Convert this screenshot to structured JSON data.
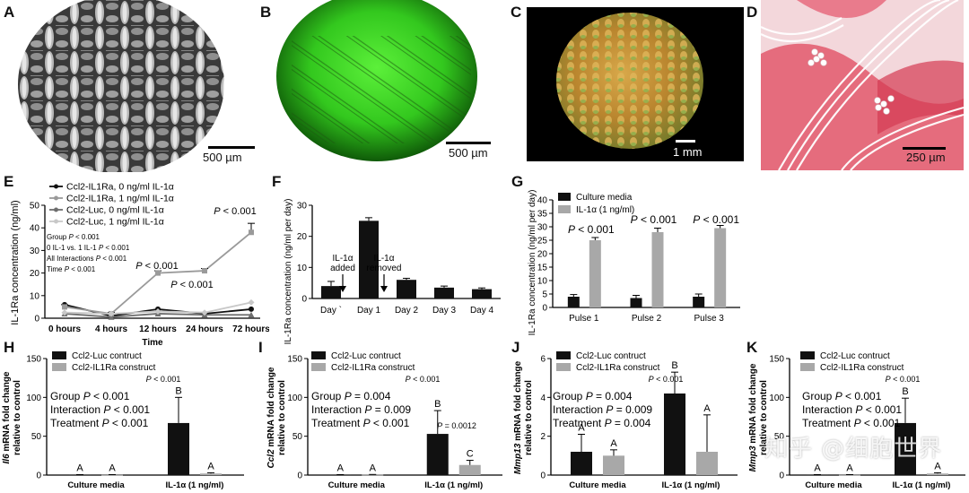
{
  "panels": {
    "A": {
      "letter": "A",
      "scale": "500 µm"
    },
    "B": {
      "letter": "B",
      "scale": "500 µm"
    },
    "C": {
      "letter": "C",
      "scale": "1 mm"
    },
    "D": {
      "letter": "D",
      "scale": "250 µm"
    },
    "E": {
      "letter": "E"
    },
    "F": {
      "letter": "F"
    },
    "G": {
      "letter": "G"
    },
    "H": {
      "letter": "H"
    },
    "I": {
      "letter": "I"
    },
    "J": {
      "letter": "J"
    },
    "K": {
      "letter": "K"
    }
  },
  "watermark": "知乎 @细胞世界",
  "chart_data": [
    {
      "panel": "E",
      "type": "line",
      "ylabel": "IL-1Ra concentration (ng/ml)",
      "xlabel": "Time",
      "categories": [
        "0 hours",
        "4 hours",
        "12 hours",
        "24 hours",
        "72 hours"
      ],
      "ylim": [
        0,
        50
      ],
      "yticks": [
        0,
        10,
        20,
        30,
        40,
        50
      ],
      "series": [
        {
          "name": "Ccl2-IL1Ra, 0 ng/ml IL-1α",
          "color": "#111111",
          "marker": "circle",
          "values": [
            6,
            1,
            4,
            2,
            4
          ]
        },
        {
          "name": "Ccl2-IL1Ra, 1 ng/ml IL-1α",
          "color": "#9a9a9a",
          "marker": "square",
          "values": [
            5,
            2,
            20,
            21,
            38
          ],
          "err": [
            1,
            0.5,
            1,
            1,
            4
          ]
        },
        {
          "name": "Ccl2-Luc, 0 ng/ml IL-1α",
          "color": "#6e6e6e",
          "marker": "triangle",
          "values": [
            2,
            0.5,
            2,
            1.5,
            1.5
          ]
        },
        {
          "name": "Ccl2-Luc, 1 ng/ml IL-1α",
          "color": "#c8c8c8",
          "marker": "diamond",
          "values": [
            2.5,
            2,
            3,
            2.5,
            7
          ]
        }
      ],
      "stats": [
        "Group P < 0.001",
        "0 IL-1 vs. 1 IL-1 P < 0.001",
        "All Interactions P < 0.001",
        "Time P < 0.001"
      ],
      "annotations": [
        "P < 0.001",
        "P < 0.001",
        "P < 0.001"
      ]
    },
    {
      "panel": "F",
      "type": "bar",
      "ylabel": "IL-1Ra concentration (ng/ml per day)",
      "categories": [
        "Day `",
        "Day 1",
        "Day 2",
        "Day 3",
        "Day 4"
      ],
      "values": [
        4,
        25,
        6,
        3.5,
        3
      ],
      "err": [
        1.5,
        1,
        0.5,
        0.5,
        0.4
      ],
      "ylim": [
        0,
        30
      ],
      "yticks": [
        0,
        10,
        20,
        30
      ],
      "annotations": [
        "IL-1α added",
        "IL-1α removed"
      ]
    },
    {
      "panel": "G",
      "type": "bar",
      "ylabel": "IL-1Ra concentration (ng/ml per day)",
      "categories": [
        "Pulse 1",
        "Pulse 2",
        "Pulse 3"
      ],
      "series": [
        {
          "name": "Culture media",
          "color": "#111111",
          "values": [
            4,
            3.5,
            4
          ],
          "err": [
            0.8,
            1,
            1
          ]
        },
        {
          "name": "IL-1α (1 ng/ml)",
          "color": "#a8a8a8",
          "values": [
            25,
            28,
            29.5
          ],
          "err": [
            1,
            1.5,
            1
          ]
        }
      ],
      "ylim": [
        0,
        40
      ],
      "yticks": [
        0,
        5,
        10,
        15,
        20,
        25,
        30,
        35,
        40
      ],
      "annotations": [
        "P < 0.001",
        "P < 0.001",
        "P < 0.001"
      ]
    },
    {
      "panel": "H",
      "type": "bar",
      "ylabel_gene": "Il6",
      "ylabel_rest": " mRNA fold change",
      "ylabel2": "relative to control",
      "categories": [
        "Culture media",
        "IL-1α (1 ng/ml)"
      ],
      "series": [
        {
          "name": "Ccl2-Luc contruct",
          "color": "#111111",
          "values": [
            0.3,
            67
          ],
          "err": [
            0.3,
            33
          ],
          "letters": [
            "A",
            "B"
          ]
        },
        {
          "name": "Ccl2-IL1Ra construct",
          "color": "#a8a8a8",
          "values": [
            0.3,
            2
          ],
          "err": [
            0.3,
            1
          ],
          "letters": [
            "A",
            "A"
          ]
        }
      ],
      "ylim": [
        0,
        150
      ],
      "yticks": [
        0,
        50,
        100,
        150
      ],
      "stats": [
        "Group P < 0.001",
        "Interaction P < 0.001",
        "Treatment P < 0.001"
      ],
      "annotations": [
        "P < 0.001"
      ]
    },
    {
      "panel": "I",
      "type": "bar",
      "ylabel_gene": "Ccl2",
      "ylabel_rest": " mRNA fold change",
      "ylabel2": "relative to control",
      "categories": [
        "Culture media",
        "IL-1α (1 ng/ml)"
      ],
      "series": [
        {
          "name": "Ccl2-Luc contruct",
          "color": "#111111",
          "values": [
            0.3,
            53
          ],
          "err": [
            0.3,
            30
          ],
          "letters": [
            "A",
            "B"
          ]
        },
        {
          "name": "Ccl2-IL1Ra construct",
          "color": "#a8a8a8",
          "values": [
            0.5,
            13
          ],
          "err": [
            0.3,
            6
          ],
          "letters": [
            "A",
            "C"
          ]
        }
      ],
      "ylim": [
        0,
        150
      ],
      "yticks": [
        0,
        50,
        100,
        150
      ],
      "stats": [
        "Group P = 0.004",
        "Interaction P = 0.009",
        "Treatment P < 0.001"
      ],
      "annotations": [
        "P < 0.001",
        "P = 0.0012"
      ]
    },
    {
      "panel": "J",
      "type": "bar",
      "ylabel_gene": "Mmp13",
      "ylabel_rest": " mRNA fold change",
      "ylabel2": "relative to control",
      "categories": [
        "Culture media",
        "IL-1α (1 ng/ml)"
      ],
      "series": [
        {
          "name": "Ccl2-Luc contruct",
          "color": "#111111",
          "values": [
            1.2,
            4.2
          ],
          "err": [
            0.9,
            1.1
          ],
          "letters": [
            "A",
            "B"
          ]
        },
        {
          "name": "Ccl2-IL1Ra construct",
          "color": "#a8a8a8",
          "values": [
            1,
            1.2
          ],
          "err": [
            0.3,
            1.9
          ],
          "letters": [
            "A",
            "A"
          ]
        }
      ],
      "ylim": [
        0,
        6
      ],
      "yticks": [
        0,
        2,
        4,
        6
      ],
      "stats": [
        "Group P = 0.004",
        "Interaction P = 0.009",
        "Treatment P = 0.004"
      ],
      "annotations": [
        "P < 0.001"
      ]
    },
    {
      "panel": "K",
      "type": "bar",
      "ylabel_gene": "Mmp3",
      "ylabel_rest": " mRNA fold change",
      "ylabel2": "relative to control",
      "categories": [
        "Culture media",
        "IL-1α (1 ng/ml)"
      ],
      "series": [
        {
          "name": "Ccl2-Luc contruct",
          "color": "#111111",
          "values": [
            0.3,
            67
          ],
          "err": [
            0.3,
            32
          ],
          "letters": [
            "A",
            "B"
          ]
        },
        {
          "name": "Ccl2-IL1Ra construct",
          "color": "#a8a8a8",
          "values": [
            0.3,
            2
          ],
          "err": [
            0.3,
            1
          ],
          "letters": [
            "A",
            "A"
          ]
        }
      ],
      "ylim": [
        0,
        150
      ],
      "yticks": [
        0,
        50,
        100,
        150
      ],
      "stats": [
        "Group P < 0.001",
        "Interaction P < 0.001",
        "Treatment P < 0.001"
      ],
      "annotations": [
        "P < 0.001"
      ]
    }
  ]
}
